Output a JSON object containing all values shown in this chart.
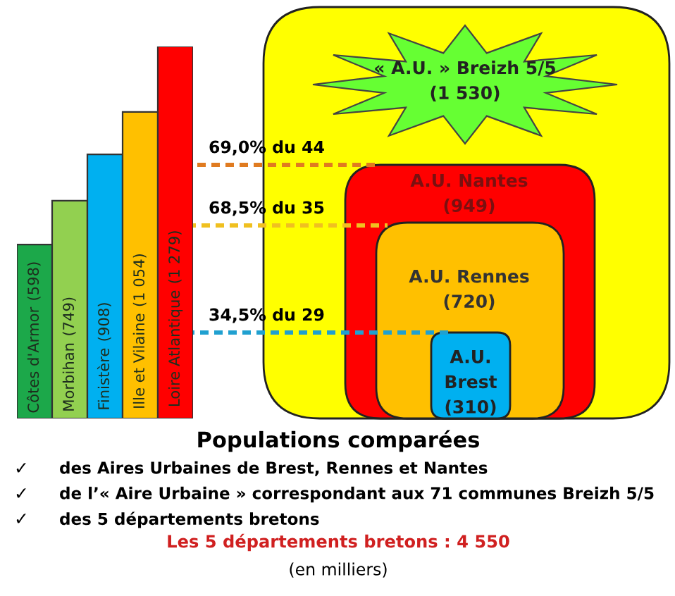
{
  "chart_data": [
    {
      "type": "bar",
      "categories": [
        "Côtes d'Armor",
        "Morbihan",
        "Finistère",
        "Ille et Vilaine",
        "Loire Atlantique"
      ],
      "values": [
        598,
        749,
        908,
        1054,
        1279
      ],
      "colors": [
        "#1ca84a",
        "#92d050",
        "#00b0f0",
        "#ffc000",
        "#ff0000"
      ],
      "value_labels": [
        "(598)",
        "(749)",
        "(908)",
        "(1 054)",
        "(1 279)"
      ]
    },
    {
      "type": "other",
      "title": "Populations comparées",
      "colors": [
        "#ffff00",
        "#ff0000",
        "#ffc000",
        "#00b0f0",
        "#66ff33",
        "#e07b20",
        "#f0c020",
        "#20a0d0"
      ],
      "annotations": [
        "« A.U. » Breizh 5/5\n(1 530)",
        "A.U. Nantes\n(949)",
        "A.U. Rennes\n(720)",
        "A.U.\nBrest\n(310)",
        "69,0% du 44",
        "68,5% du 35",
        "34,5% du 29",
        "✓",
        "des Aires Urbaines de Brest, Rennes et Nantes",
        "✓",
        "de l’« Aire Urbaine » correspondant aux 71 communes Breizh 5/5",
        "✓",
        "des 5 départements bretons",
        "Les 5 départements bretons : 4 550",
        "(en milliers)"
      ]
    }
  ]
}
